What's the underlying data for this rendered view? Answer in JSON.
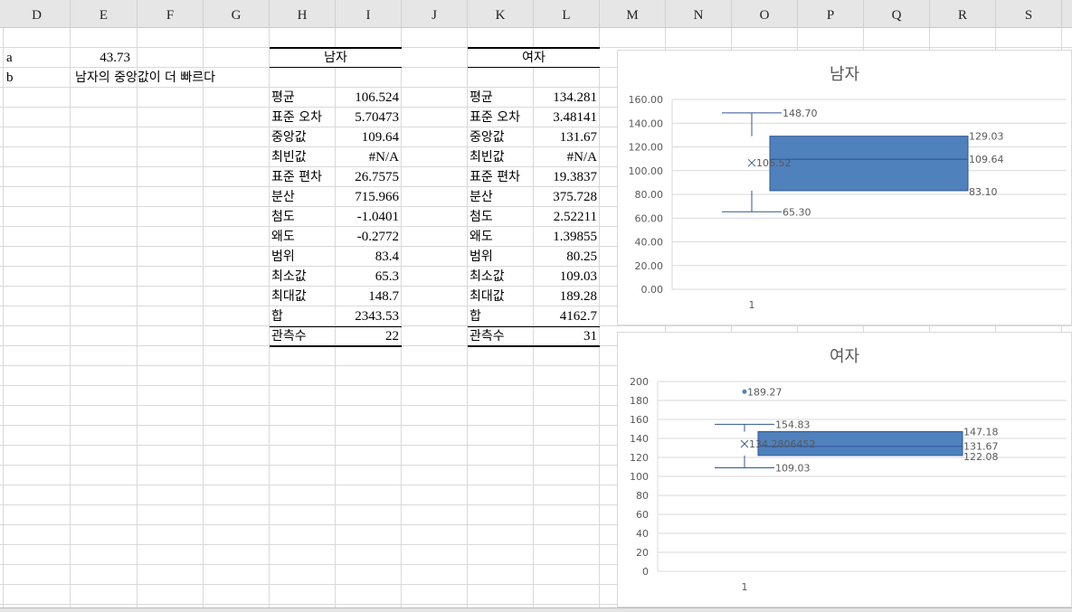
{
  "columns": [
    "D",
    "E",
    "F",
    "G",
    "H",
    "I",
    "J",
    "K",
    "L",
    "M",
    "N",
    "O",
    "P",
    "Q",
    "R",
    "S"
  ],
  "cells": {
    "a_label": "a",
    "a_value": "43.73",
    "b_label": "b",
    "b_value": "남자의 중앙값이 더 빠르다"
  },
  "tables": [
    {
      "title": "남자",
      "rows": [
        [
          "평균",
          "106.524"
        ],
        [
          "표준 오차",
          "5.70473"
        ],
        [
          "중앙값",
          "109.64"
        ],
        [
          "최빈값",
          "#N/A"
        ],
        [
          "표준 편차",
          "26.7575"
        ],
        [
          "분산",
          "715.966"
        ],
        [
          "첨도",
          "-1.0401"
        ],
        [
          "왜도",
          "-0.2772"
        ],
        [
          "범위",
          "83.4"
        ],
        [
          "최소값",
          "65.3"
        ],
        [
          "최대값",
          "148.7"
        ],
        [
          "합",
          "2343.53"
        ],
        [
          "관측수",
          "22"
        ]
      ]
    },
    {
      "title": "여자",
      "rows": [
        [
          "평균",
          "134.281"
        ],
        [
          "표준 오차",
          "3.48141"
        ],
        [
          "중앙값",
          "131.67"
        ],
        [
          "최빈값",
          "#N/A"
        ],
        [
          "표준 편차",
          "19.3837"
        ],
        [
          "분산",
          "375.728"
        ],
        [
          "첨도",
          "2.52211"
        ],
        [
          "왜도",
          "1.39855"
        ],
        [
          "범위",
          "80.25"
        ],
        [
          "최소값",
          "109.03"
        ],
        [
          "최대값",
          "189.28"
        ],
        [
          "합",
          "4162.7"
        ],
        [
          "관측수",
          "31"
        ]
      ]
    }
  ],
  "chart_data": [
    {
      "type": "boxplot",
      "title": "남자",
      "categories": [
        "1"
      ],
      "ylim": [
        0,
        160
      ],
      "yticks": [
        "0.00",
        "20.00",
        "40.00",
        "60.00",
        "80.00",
        "100.00",
        "120.00",
        "140.00",
        "160.00"
      ],
      "ytick_values": [
        0,
        20,
        40,
        60,
        80,
        100,
        120,
        140,
        160
      ],
      "grid": true,
      "box": {
        "min": 65.3,
        "q1": 83.1,
        "median": 109.64,
        "q3": 129.03,
        "max": 148.7,
        "mean": 106.52,
        "outliers": []
      },
      "labels": {
        "min": "65.30",
        "q1": "83.10",
        "median": "109.64",
        "q3": "129.03",
        "max": "148.70",
        "mean": "106.52"
      },
      "color": "#4f81bd"
    },
    {
      "type": "boxplot",
      "title": "여자",
      "categories": [
        "1"
      ],
      "ylim": [
        0,
        200
      ],
      "yticks": [
        "0",
        "20",
        "40",
        "60",
        "80",
        "100",
        "120",
        "140",
        "160",
        "180",
        "200"
      ],
      "ytick_values": [
        0,
        20,
        40,
        60,
        80,
        100,
        120,
        140,
        160,
        180,
        200
      ],
      "grid": true,
      "box": {
        "min": 109.03,
        "q1": 122.08,
        "median": 131.67,
        "q3": 147.18,
        "max": 154.83,
        "mean": 134.2806452,
        "outliers": [
          189.27
        ]
      },
      "labels": {
        "min": "109.03",
        "q1": "122.08",
        "median": "131.67",
        "q3": "147.18",
        "max": "154.83",
        "mean": "134.2806452",
        "outliers": [
          "189.27"
        ]
      },
      "color": "#4f81bd"
    }
  ]
}
